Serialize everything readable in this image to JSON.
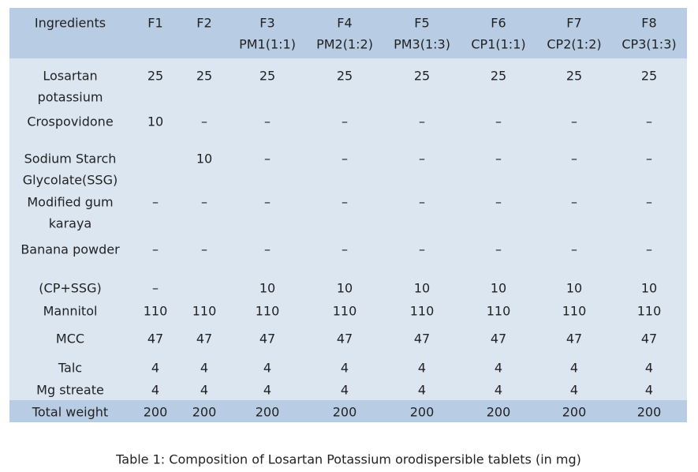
{
  "table": {
    "header": [
      [
        "Ingredients"
      ],
      [
        "F1"
      ],
      [
        "F2"
      ],
      [
        "F3",
        "PM1(1:1)"
      ],
      [
        "F4",
        "PM2(1:2)"
      ],
      [
        "F5",
        "PM3(1:3)"
      ],
      [
        "F6",
        "CP1(1:1)"
      ],
      [
        "F7",
        "CP2(1:2)"
      ],
      [
        "F8",
        "CP3(1:3)"
      ]
    ],
    "rows": [
      {
        "label": [
          "Losartan",
          "potassium"
        ],
        "cells": [
          25,
          25,
          25,
          25,
          25,
          25,
          25,
          25
        ]
      },
      {
        "label": [
          "Crospovidone"
        ],
        "cells": [
          10,
          "–",
          "–",
          "–",
          "–",
          "–",
          "–",
          "–"
        ]
      },
      {
        "label": [
          "Sodium Starch",
          "Glycolate(SSG)"
        ],
        "cells": [
          null,
          10,
          "–",
          "–",
          "–",
          "–",
          "–",
          "–"
        ]
      },
      {
        "label": [
          "Modified gum",
          "karaya"
        ],
        "cells": [
          "–",
          "–",
          "–",
          "–",
          "–",
          "–",
          "–",
          "–"
        ]
      },
      {
        "label": [
          "Banana powder"
        ],
        "cells": [
          "–",
          "–",
          "–",
          "–",
          "–",
          "–",
          "–",
          "–"
        ]
      },
      {
        "label": [
          "(CP+SSG)"
        ],
        "cells": [
          "–",
          null,
          10,
          10,
          10,
          10,
          10,
          10
        ]
      },
      {
        "label": [
          "Mannitol"
        ],
        "cells": [
          110,
          110,
          110,
          110,
          110,
          110,
          110,
          110
        ]
      },
      {
        "label": [
          "MCC"
        ],
        "cells": [
          47,
          47,
          47,
          47,
          47,
          47,
          47,
          47
        ]
      },
      {
        "label": [
          "Talc"
        ],
        "cells": [
          4,
          4,
          4,
          4,
          4,
          4,
          4,
          4
        ]
      },
      {
        "label": [
          "Mg streate"
        ],
        "cells": [
          4,
          4,
          4,
          4,
          4,
          4,
          4,
          4
        ]
      },
      {
        "label": [
          "Total weight"
        ],
        "cells": [
          200,
          200,
          200,
          200,
          200,
          200,
          200,
          200
        ]
      }
    ]
  },
  "caption": "Table 1: Composition of Losartan Potassium orodispersible tablets (in mg)"
}
